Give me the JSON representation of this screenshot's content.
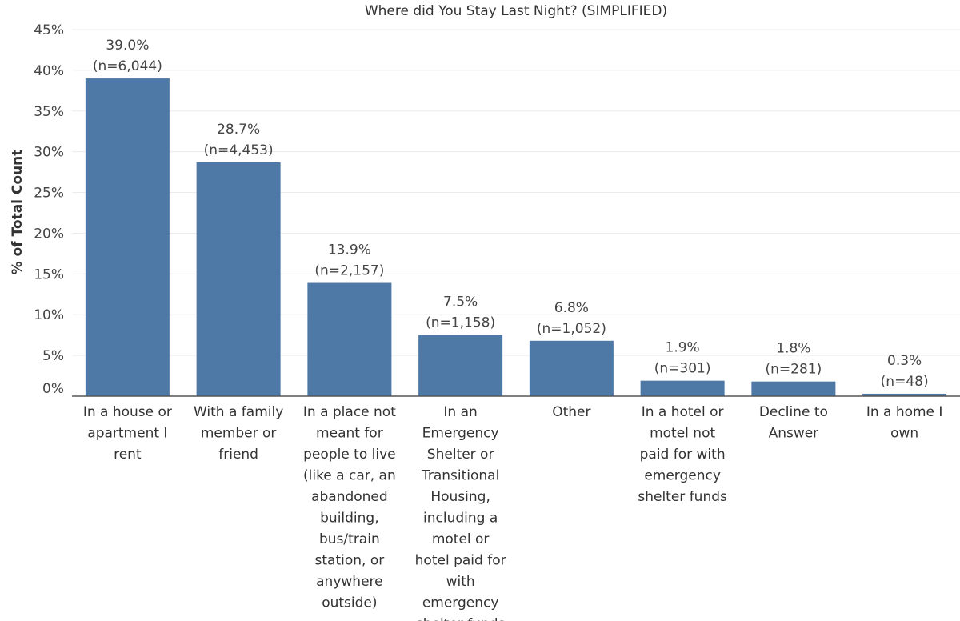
{
  "chart_data": {
    "type": "bar",
    "title": "Where did You Stay Last Night? (SIMPLIFIED)",
    "xlabel": "",
    "ylabel": "% of Total Count",
    "ylim": [
      0,
      45
    ],
    "yticks": [
      "0%",
      "5%",
      "10%",
      "15%",
      "20%",
      "25%",
      "30%",
      "35%",
      "40%",
      "45%"
    ],
    "grid": true,
    "bar_color": "#4e79a7",
    "categories": [
      "In a house or apartment I rent",
      "With a family member or friend",
      "In a place not meant for people to live (like a car, an abandoned building, bus/train station, or anywhere outside)",
      "In an Emergency Shelter or Transitional Housing, including a motel or hotel paid for with emergency shelter funds",
      "Other",
      "In a hotel or motel not paid for with emergency shelter funds",
      "Decline to Answer",
      "In a home I own"
    ],
    "values": [
      39.0,
      28.7,
      13.9,
      7.5,
      6.8,
      1.9,
      1.8,
      0.3
    ],
    "value_labels": [
      "39.0%",
      "28.7%",
      "13.9%",
      "7.5%",
      "6.8%",
      "1.9%",
      "1.8%",
      "0.3%"
    ],
    "count_labels": [
      "(n=6,044)",
      "(n=4,453)",
      "(n=2,157)",
      "(n=1,158)",
      "(n=1,052)",
      "(n=301)",
      "(n=281)",
      "(n=48)"
    ]
  }
}
